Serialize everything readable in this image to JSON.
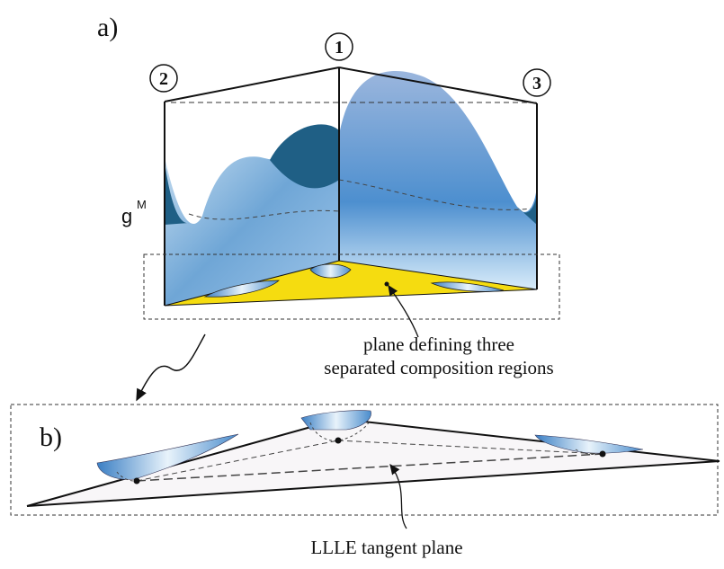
{
  "panel_a": {
    "label": "a)",
    "vertices": [
      "1",
      "2",
      "3"
    ],
    "axis_label": {
      "base": "g",
      "superscript": "M"
    },
    "annotation": [
      "plane defining three",
      "separated composition regions"
    ]
  },
  "panel_b": {
    "label": "b)",
    "annotation": "LLLE tangent plane"
  }
}
